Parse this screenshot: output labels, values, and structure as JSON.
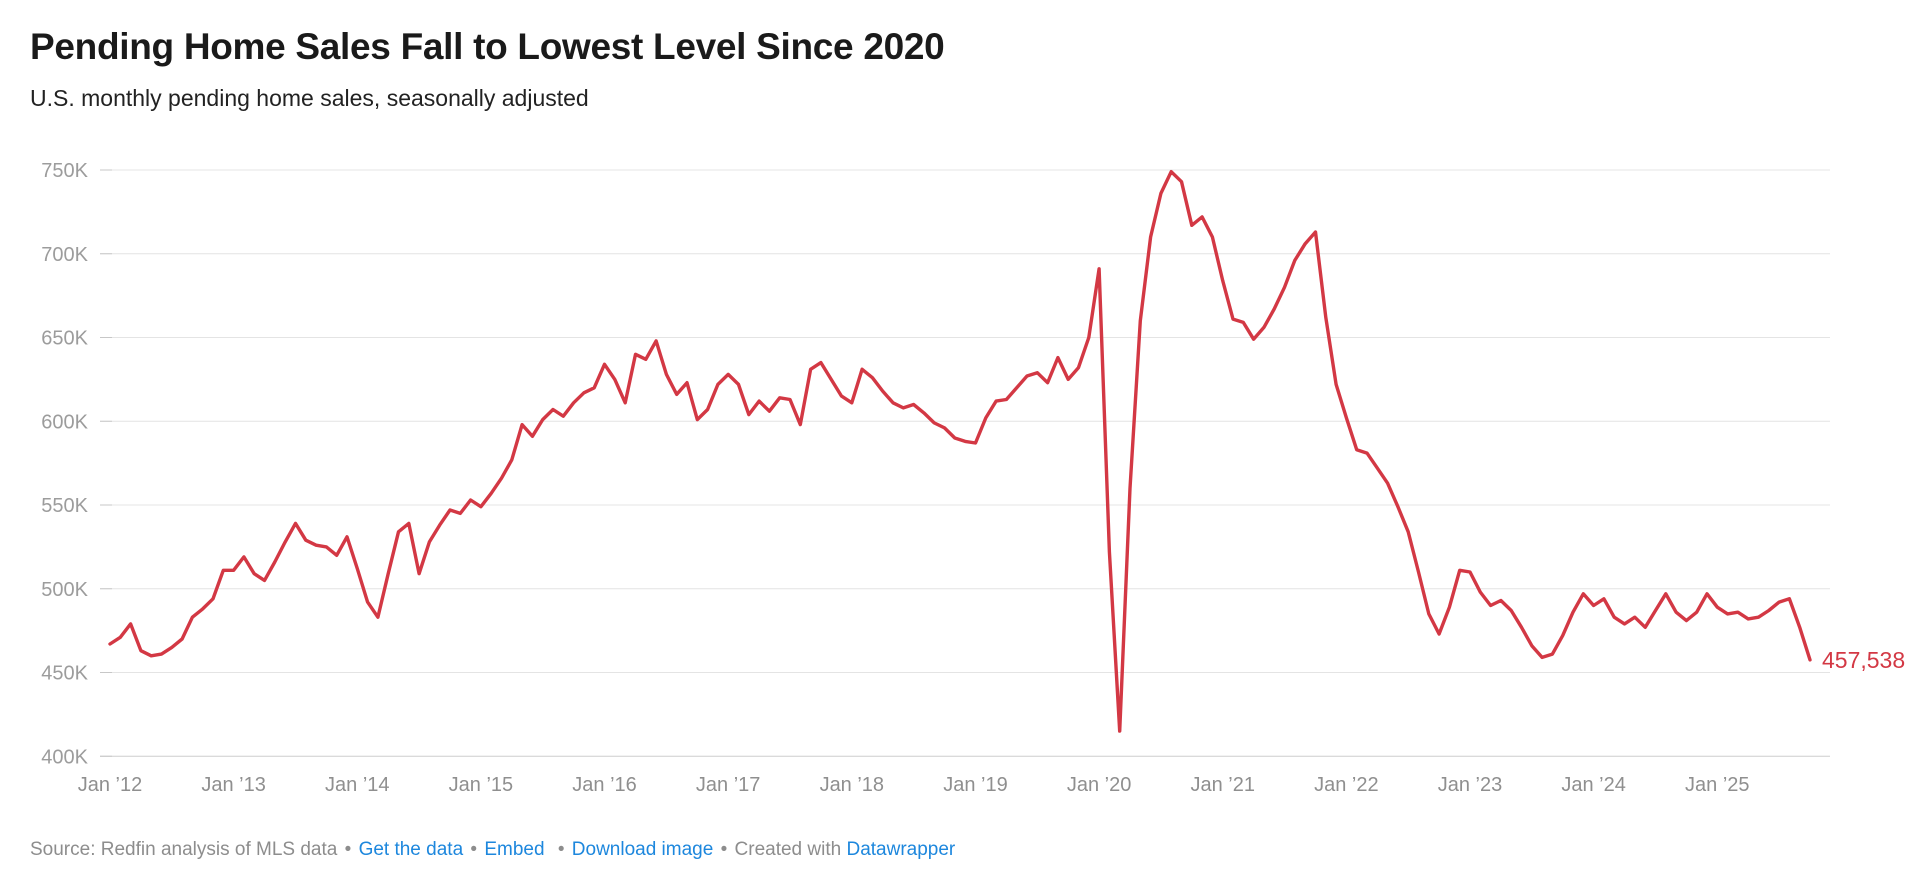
{
  "header": {
    "title": "Pending Home Sales Fall to Lowest Level Since 2020",
    "subtitle": "U.S. monthly pending home sales, seasonally adjusted"
  },
  "colors": {
    "line": "#d33844",
    "end_label": "#d33844",
    "gridline": "#e4e4e4",
    "baseline": "#cdcdcd",
    "tick": "#c7c7c7",
    "axis_label": "#9c9c9c",
    "link_blue": "#1d87dd",
    "title_text": "#1a1a1a",
    "footer_text": "#8d8d8d"
  },
  "chart_data": {
    "type": "line",
    "title": "Pending Home Sales Fall to Lowest Level Since 2020",
    "subtitle": "U.S. monthly pending home sales, seasonally adjusted",
    "unit": "thousands of homes (K)",
    "x_start": "Jan 2012",
    "x_end": "Oct 2025",
    "frequency": "monthly",
    "grid": "horizontal-only",
    "legend": "none",
    "ylim": [
      400,
      750
    ],
    "y_ticks": [
      {
        "value": 750,
        "label": "750K"
      },
      {
        "value": 700,
        "label": "700K"
      },
      {
        "value": 650,
        "label": "650K"
      },
      {
        "value": 600,
        "label": "600K"
      },
      {
        "value": 550,
        "label": "550K"
      },
      {
        "value": 500,
        "label": "500K"
      },
      {
        "value": 450,
        "label": "450K"
      },
      {
        "value": 400,
        "label": "400K"
      }
    ],
    "x_ticks": [
      {
        "index": 0,
        "label": "Jan ’12"
      },
      {
        "index": 12,
        "label": "Jan ’13"
      },
      {
        "index": 24,
        "label": "Jan ’14"
      },
      {
        "index": 36,
        "label": "Jan ’15"
      },
      {
        "index": 48,
        "label": "Jan ’16"
      },
      {
        "index": 60,
        "label": "Jan ’17"
      },
      {
        "index": 72,
        "label": "Jan ’18"
      },
      {
        "index": 84,
        "label": "Jan ’19"
      },
      {
        "index": 96,
        "label": "Jan ’20"
      },
      {
        "index": 108,
        "label": "Jan ’21"
      },
      {
        "index": 120,
        "label": "Jan ’22"
      },
      {
        "index": 132,
        "label": "Jan ’23"
      },
      {
        "index": 144,
        "label": "Jan ’24"
      },
      {
        "index": 156,
        "label": "Jan ’25"
      }
    ],
    "end_label": "457,538",
    "last_value": 457538,
    "series": [
      {
        "name": "Pending home sales (seasonally adjusted)",
        "values_unit": "thousands",
        "values": [
          467,
          471,
          479,
          463,
          460,
          461,
          465,
          470,
          483,
          488,
          494,
          511,
          511,
          519,
          509,
          505,
          516,
          528,
          539,
          529,
          526,
          525,
          520,
          531,
          512,
          492,
          483,
          509,
          534,
          539,
          509,
          528,
          538,
          547,
          545,
          553,
          549,
          557,
          566,
          577,
          598,
          591,
          601,
          607,
          603,
          611,
          617,
          620,
          634,
          625,
          611,
          640,
          637,
          648,
          628,
          616,
          623,
          601,
          607,
          622,
          628,
          622,
          604,
          612,
          606,
          614,
          613,
          598,
          631,
          635,
          625,
          615,
          611,
          631,
          626,
          618,
          611,
          608,
          610,
          605,
          599,
          596,
          590,
          588,
          587,
          602,
          612,
          613,
          620,
          627,
          629,
          623,
          638,
          625,
          632,
          650,
          691,
          522,
          415,
          560,
          660,
          710,
          736,
          749,
          743,
          717,
          722,
          710,
          684,
          661,
          659,
          649,
          656,
          667,
          680,
          696,
          706,
          713,
          662,
          622,
          602,
          583,
          581,
          572,
          563,
          549,
          534,
          510,
          485,
          473,
          489,
          511,
          510,
          498,
          490,
          493,
          487,
          477,
          466,
          459,
          461,
          472,
          486,
          497,
          490,
          494,
          483,
          479,
          483,
          477,
          487,
          497,
          486,
          481,
          486,
          497,
          489,
          485,
          486,
          482,
          483,
          487,
          492,
          494,
          477,
          457.538
        ]
      }
    ]
  },
  "footer": {
    "source_prefix": "Source: ",
    "source_text": "Redfin analysis of MLS data",
    "sep": "•",
    "link_get_data": "Get the data",
    "link_embed": "Embed",
    "link_download": "Download image",
    "created_prefix": "Created with ",
    "link_datawrapper": "Datawrapper"
  }
}
